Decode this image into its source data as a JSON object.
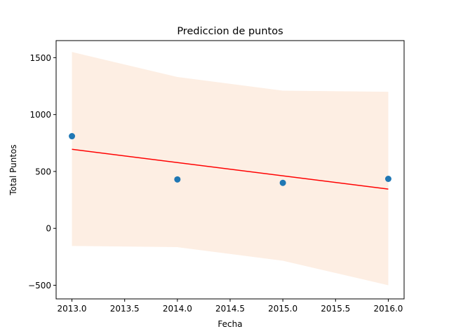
{
  "chart_data": {
    "type": "scatter",
    "title": "Prediccion de puntos",
    "xlabel": "Fecha",
    "ylabel": "Total Puntos",
    "xlim": [
      2012.85,
      2016.15
    ],
    "ylim": [
      -620,
      1650
    ],
    "xticks": [
      2013.0,
      2013.5,
      2014.0,
      2014.5,
      2015.0,
      2015.5,
      2016.0
    ],
    "xtick_labels": [
      "2013.0",
      "2013.5",
      "2014.0",
      "2014.5",
      "2015.0",
      "2015.5",
      "2016.0"
    ],
    "yticks": [
      -500,
      0,
      500,
      1000,
      1500
    ],
    "ytick_labels": [
      "−500",
      "0",
      "500",
      "1000",
      "1500"
    ],
    "grid": false,
    "points": {
      "x": [
        2013.0,
        2014.0,
        2015.0,
        2016.0
      ],
      "y": [
        810,
        430,
        400,
        435
      ],
      "color": "#1f77b4"
    },
    "regression_line": {
      "x": [
        2013.0,
        2016.0
      ],
      "y": [
        695,
        345
      ],
      "color": "#ff0000"
    },
    "confidence_band": {
      "x": [
        2013.0,
        2014.0,
        2015.0,
        2016.0
      ],
      "upper": [
        1550,
        1330,
        1210,
        1200
      ],
      "lower": [
        -155,
        -165,
        -285,
        -500
      ],
      "color": "#fdeee3"
    }
  }
}
